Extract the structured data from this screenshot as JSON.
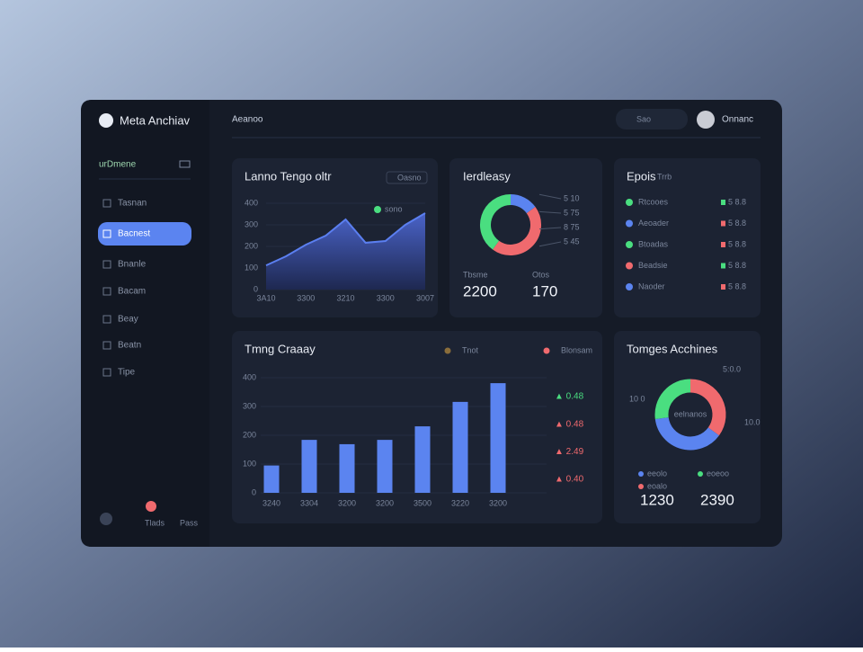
{
  "app": {
    "name": "Meta Anchiav",
    "workspace": "urDmene"
  },
  "nav": [
    {
      "label": "Tasnan",
      "active": false
    },
    {
      "label": "Bacnest",
      "active": true
    },
    {
      "label": "Bnanle",
      "active": false
    },
    {
      "label": "Bacam",
      "active": false
    },
    {
      "label": "Beay",
      "active": false
    },
    {
      "label": "Beatn",
      "active": false
    },
    {
      "label": "Tipe",
      "active": false
    }
  ],
  "footer_nav": [
    "Tlads",
    "Pass"
  ],
  "header": {
    "breadcrumb": "Aeanoo",
    "search": "Sao",
    "user": "Onnanc"
  },
  "trend": {
    "title": "Lanno Tengo oltr",
    "badge": "Oasno",
    "legend": "sono",
    "color": "#5b7ff0",
    "categories": [
      "3A10",
      null,
      "3300",
      null,
      "3210",
      null,
      "3300",
      null,
      "3007"
    ],
    "values": [
      112,
      154,
      208,
      250,
      325,
      217,
      225,
      300,
      354
    ],
    "ylim": [
      0,
      400
    ],
    "yticks": [
      0,
      100,
      200,
      300,
      400
    ]
  },
  "share": {
    "title": "Ierdleasy",
    "categories": [
      "Blue",
      "Red",
      "Green"
    ],
    "values": [
      15,
      45,
      40
    ],
    "colors": [
      "#5b84f0",
      "#f06a6e",
      "#4ade80"
    ],
    "callouts": [
      "5 10",
      "5 75",
      "8 75",
      "5 45"
    ],
    "stats": [
      {
        "label": "Tbsme",
        "value": "2200"
      },
      {
        "label": "Otos",
        "value": "170"
      }
    ]
  },
  "events": {
    "title": "Epois",
    "subtitle": "Trrb",
    "rows": [
      {
        "label": "Rtcooes",
        "value": "5 8.8",
        "dot": "#4ade80",
        "mark": "#4ade80"
      },
      {
        "label": "Aeoader",
        "value": "5 8.8",
        "dot": "#5b84f0",
        "mark": "#f06a6e"
      },
      {
        "label": "Btoadas",
        "value": "5 8.8",
        "dot": "#4ade80",
        "mark": "#f06a6e"
      },
      {
        "label": "Beadsie",
        "value": "5 8.8",
        "dot": "#f06a6e",
        "mark": "#4ade80"
      },
      {
        "label": "Naoder",
        "value": "5 8.8",
        "dot": "#5b84f0",
        "mark": "#f06a6e"
      }
    ]
  },
  "bars": {
    "title": "Tmng Craaay",
    "legend": [
      "Tnot",
      "Blonsam"
    ],
    "legend_colors": [
      "#8a6d3b",
      "#f06a6e"
    ],
    "color": "#5b84f0",
    "categories": [
      "3240",
      "3304",
      "3200",
      "3200",
      "3500",
      "3220",
      "3200"
    ],
    "values": [
      95,
      184,
      169,
      184,
      231,
      316,
      381
    ],
    "ylim": [
      0,
      400
    ],
    "yticks": [
      0,
      100,
      200,
      300,
      400
    ],
    "changes": [
      {
        "text": "▲ 0.48",
        "color": "#4ade80"
      },
      {
        "text": "▲ 0.48",
        "color": "#f06a6e"
      },
      {
        "text": "▲ 2.49",
        "color": "#f06a6e"
      },
      {
        "text": "▲ 0.40",
        "color": "#f06a6e"
      }
    ]
  },
  "donut": {
    "title": "Tomges Acchines",
    "center": "eelnanos",
    "categories": [
      "eeolo",
      "eoeoo",
      "eoalo"
    ],
    "values": [
      35,
      38,
      27
    ],
    "colors": [
      "#f06a6e",
      "#5b84f0",
      "#4ade80"
    ],
    "callouts": [
      "5:0.0",
      "10.0",
      "10 0"
    ],
    "totals": [
      "1230",
      "2390"
    ]
  }
}
